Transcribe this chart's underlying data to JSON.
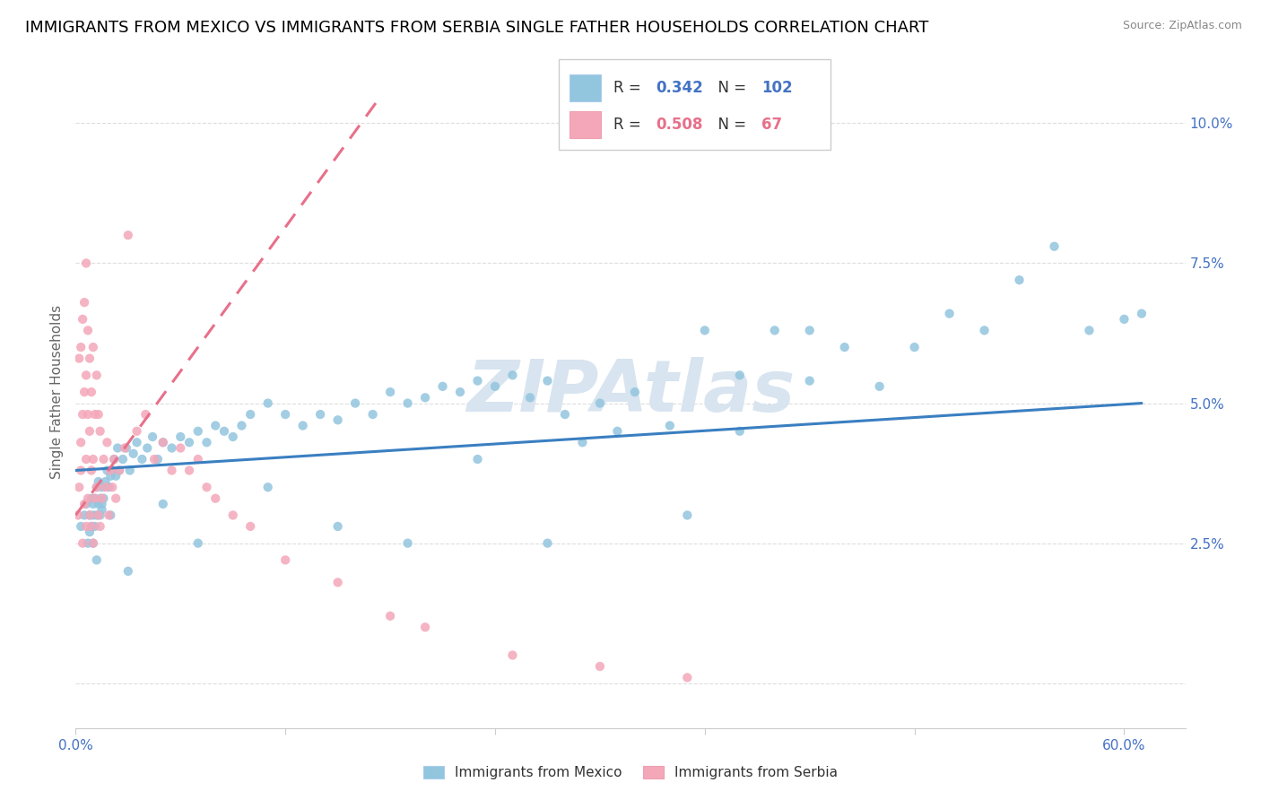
{
  "title": "IMMIGRANTS FROM MEXICO VS IMMIGRANTS FROM SERBIA SINGLE FATHER HOUSEHOLDS CORRELATION CHART",
  "source": "Source: ZipAtlas.com",
  "ylabel": "Single Father Households",
  "R_mexico": 0.342,
  "N_mexico": 102,
  "R_serbia": 0.508,
  "N_serbia": 67,
  "mexico_color": "#92C5DE",
  "serbia_color": "#F4A7B9",
  "mexico_line_color": "#3A7FC1",
  "serbia_line_color": "#E8708A",
  "watermark": "ZIPAtlas",
  "watermark_color": "#D8E4EF",
  "title_fontsize": 13,
  "axis_label_fontsize": 11,
  "tick_fontsize": 11,
  "xlim": [
    0.0,
    0.635
  ],
  "ylim": [
    -0.008,
    0.112
  ],
  "ytick_vals": [
    0.0,
    0.025,
    0.05,
    0.075,
    0.1
  ],
  "ytick_labels": [
    "",
    "2.5%",
    "5.0%",
    "7.5%",
    "10.0%"
  ],
  "xtick_vals": [
    0.0,
    0.12,
    0.24,
    0.36,
    0.48,
    0.6
  ],
  "xtick_labels": [
    "0.0%",
    "",
    "",
    "",
    "",
    "60.0%"
  ],
  "mexico_line_x": [
    0.0,
    0.61
  ],
  "mexico_line_y": [
    0.038,
    0.05
  ],
  "serbia_line_x": [
    0.0,
    0.175
  ],
  "serbia_line_y": [
    0.03,
    0.105
  ],
  "mex_x": [
    0.003,
    0.005,
    0.006,
    0.007,
    0.008,
    0.008,
    0.009,
    0.009,
    0.01,
    0.01,
    0.01,
    0.011,
    0.011,
    0.012,
    0.012,
    0.013,
    0.013,
    0.014,
    0.014,
    0.015,
    0.015,
    0.016,
    0.017,
    0.018,
    0.019,
    0.02,
    0.021,
    0.022,
    0.023,
    0.024,
    0.025,
    0.027,
    0.029,
    0.031,
    0.033,
    0.035,
    0.038,
    0.041,
    0.044,
    0.047,
    0.05,
    0.055,
    0.06,
    0.065,
    0.07,
    0.075,
    0.08,
    0.085,
    0.09,
    0.095,
    0.1,
    0.11,
    0.12,
    0.13,
    0.14,
    0.15,
    0.16,
    0.17,
    0.18,
    0.19,
    0.2,
    0.21,
    0.22,
    0.23,
    0.24,
    0.25,
    0.26,
    0.27,
    0.28,
    0.29,
    0.3,
    0.32,
    0.34,
    0.36,
    0.38,
    0.4,
    0.42,
    0.44,
    0.46,
    0.48,
    0.5,
    0.52,
    0.54,
    0.56,
    0.58,
    0.6,
    0.61,
    0.38,
    0.42,
    0.35,
    0.31,
    0.27,
    0.23,
    0.19,
    0.15,
    0.11,
    0.07,
    0.05,
    0.03,
    0.02,
    0.015,
    0.012
  ],
  "mex_y": [
    0.028,
    0.03,
    0.032,
    0.025,
    0.03,
    0.027,
    0.033,
    0.028,
    0.03,
    0.025,
    0.032,
    0.028,
    0.033,
    0.03,
    0.035,
    0.032,
    0.036,
    0.033,
    0.03,
    0.035,
    0.031,
    0.033,
    0.036,
    0.038,
    0.035,
    0.037,
    0.038,
    0.04,
    0.037,
    0.042,
    0.038,
    0.04,
    0.042,
    0.038,
    0.041,
    0.043,
    0.04,
    0.042,
    0.044,
    0.04,
    0.043,
    0.042,
    0.044,
    0.043,
    0.045,
    0.043,
    0.046,
    0.045,
    0.044,
    0.046,
    0.048,
    0.05,
    0.048,
    0.046,
    0.048,
    0.047,
    0.05,
    0.048,
    0.052,
    0.05,
    0.051,
    0.053,
    0.052,
    0.054,
    0.053,
    0.055,
    0.051,
    0.054,
    0.048,
    0.043,
    0.05,
    0.052,
    0.046,
    0.063,
    0.055,
    0.063,
    0.054,
    0.06,
    0.053,
    0.06,
    0.066,
    0.063,
    0.072,
    0.078,
    0.063,
    0.065,
    0.066,
    0.045,
    0.063,
    0.03,
    0.045,
    0.025,
    0.04,
    0.025,
    0.028,
    0.035,
    0.025,
    0.032,
    0.02,
    0.03,
    0.032,
    0.022
  ],
  "ser_x": [
    0.0015,
    0.002,
    0.002,
    0.003,
    0.003,
    0.003,
    0.004,
    0.004,
    0.004,
    0.005,
    0.005,
    0.005,
    0.006,
    0.006,
    0.006,
    0.006,
    0.007,
    0.007,
    0.007,
    0.008,
    0.008,
    0.008,
    0.009,
    0.009,
    0.009,
    0.01,
    0.01,
    0.01,
    0.011,
    0.011,
    0.012,
    0.012,
    0.013,
    0.013,
    0.014,
    0.014,
    0.015,
    0.016,
    0.017,
    0.018,
    0.019,
    0.02,
    0.021,
    0.022,
    0.023,
    0.025,
    0.028,
    0.03,
    0.035,
    0.04,
    0.045,
    0.05,
    0.055,
    0.06,
    0.065,
    0.07,
    0.075,
    0.08,
    0.09,
    0.1,
    0.12,
    0.15,
    0.18,
    0.2,
    0.25,
    0.3,
    0.35
  ],
  "ser_y": [
    0.03,
    0.035,
    0.058,
    0.038,
    0.043,
    0.06,
    0.025,
    0.048,
    0.065,
    0.032,
    0.052,
    0.068,
    0.028,
    0.04,
    0.055,
    0.075,
    0.033,
    0.048,
    0.063,
    0.03,
    0.045,
    0.058,
    0.028,
    0.038,
    0.052,
    0.025,
    0.04,
    0.06,
    0.033,
    0.048,
    0.035,
    0.055,
    0.03,
    0.048,
    0.028,
    0.045,
    0.033,
    0.04,
    0.035,
    0.043,
    0.03,
    0.038,
    0.035,
    0.04,
    0.033,
    0.038,
    0.042,
    0.08,
    0.045,
    0.048,
    0.04,
    0.043,
    0.038,
    0.042,
    0.038,
    0.04,
    0.035,
    0.033,
    0.03,
    0.028,
    0.022,
    0.018,
    0.012,
    0.01,
    0.005,
    0.003,
    0.001
  ]
}
